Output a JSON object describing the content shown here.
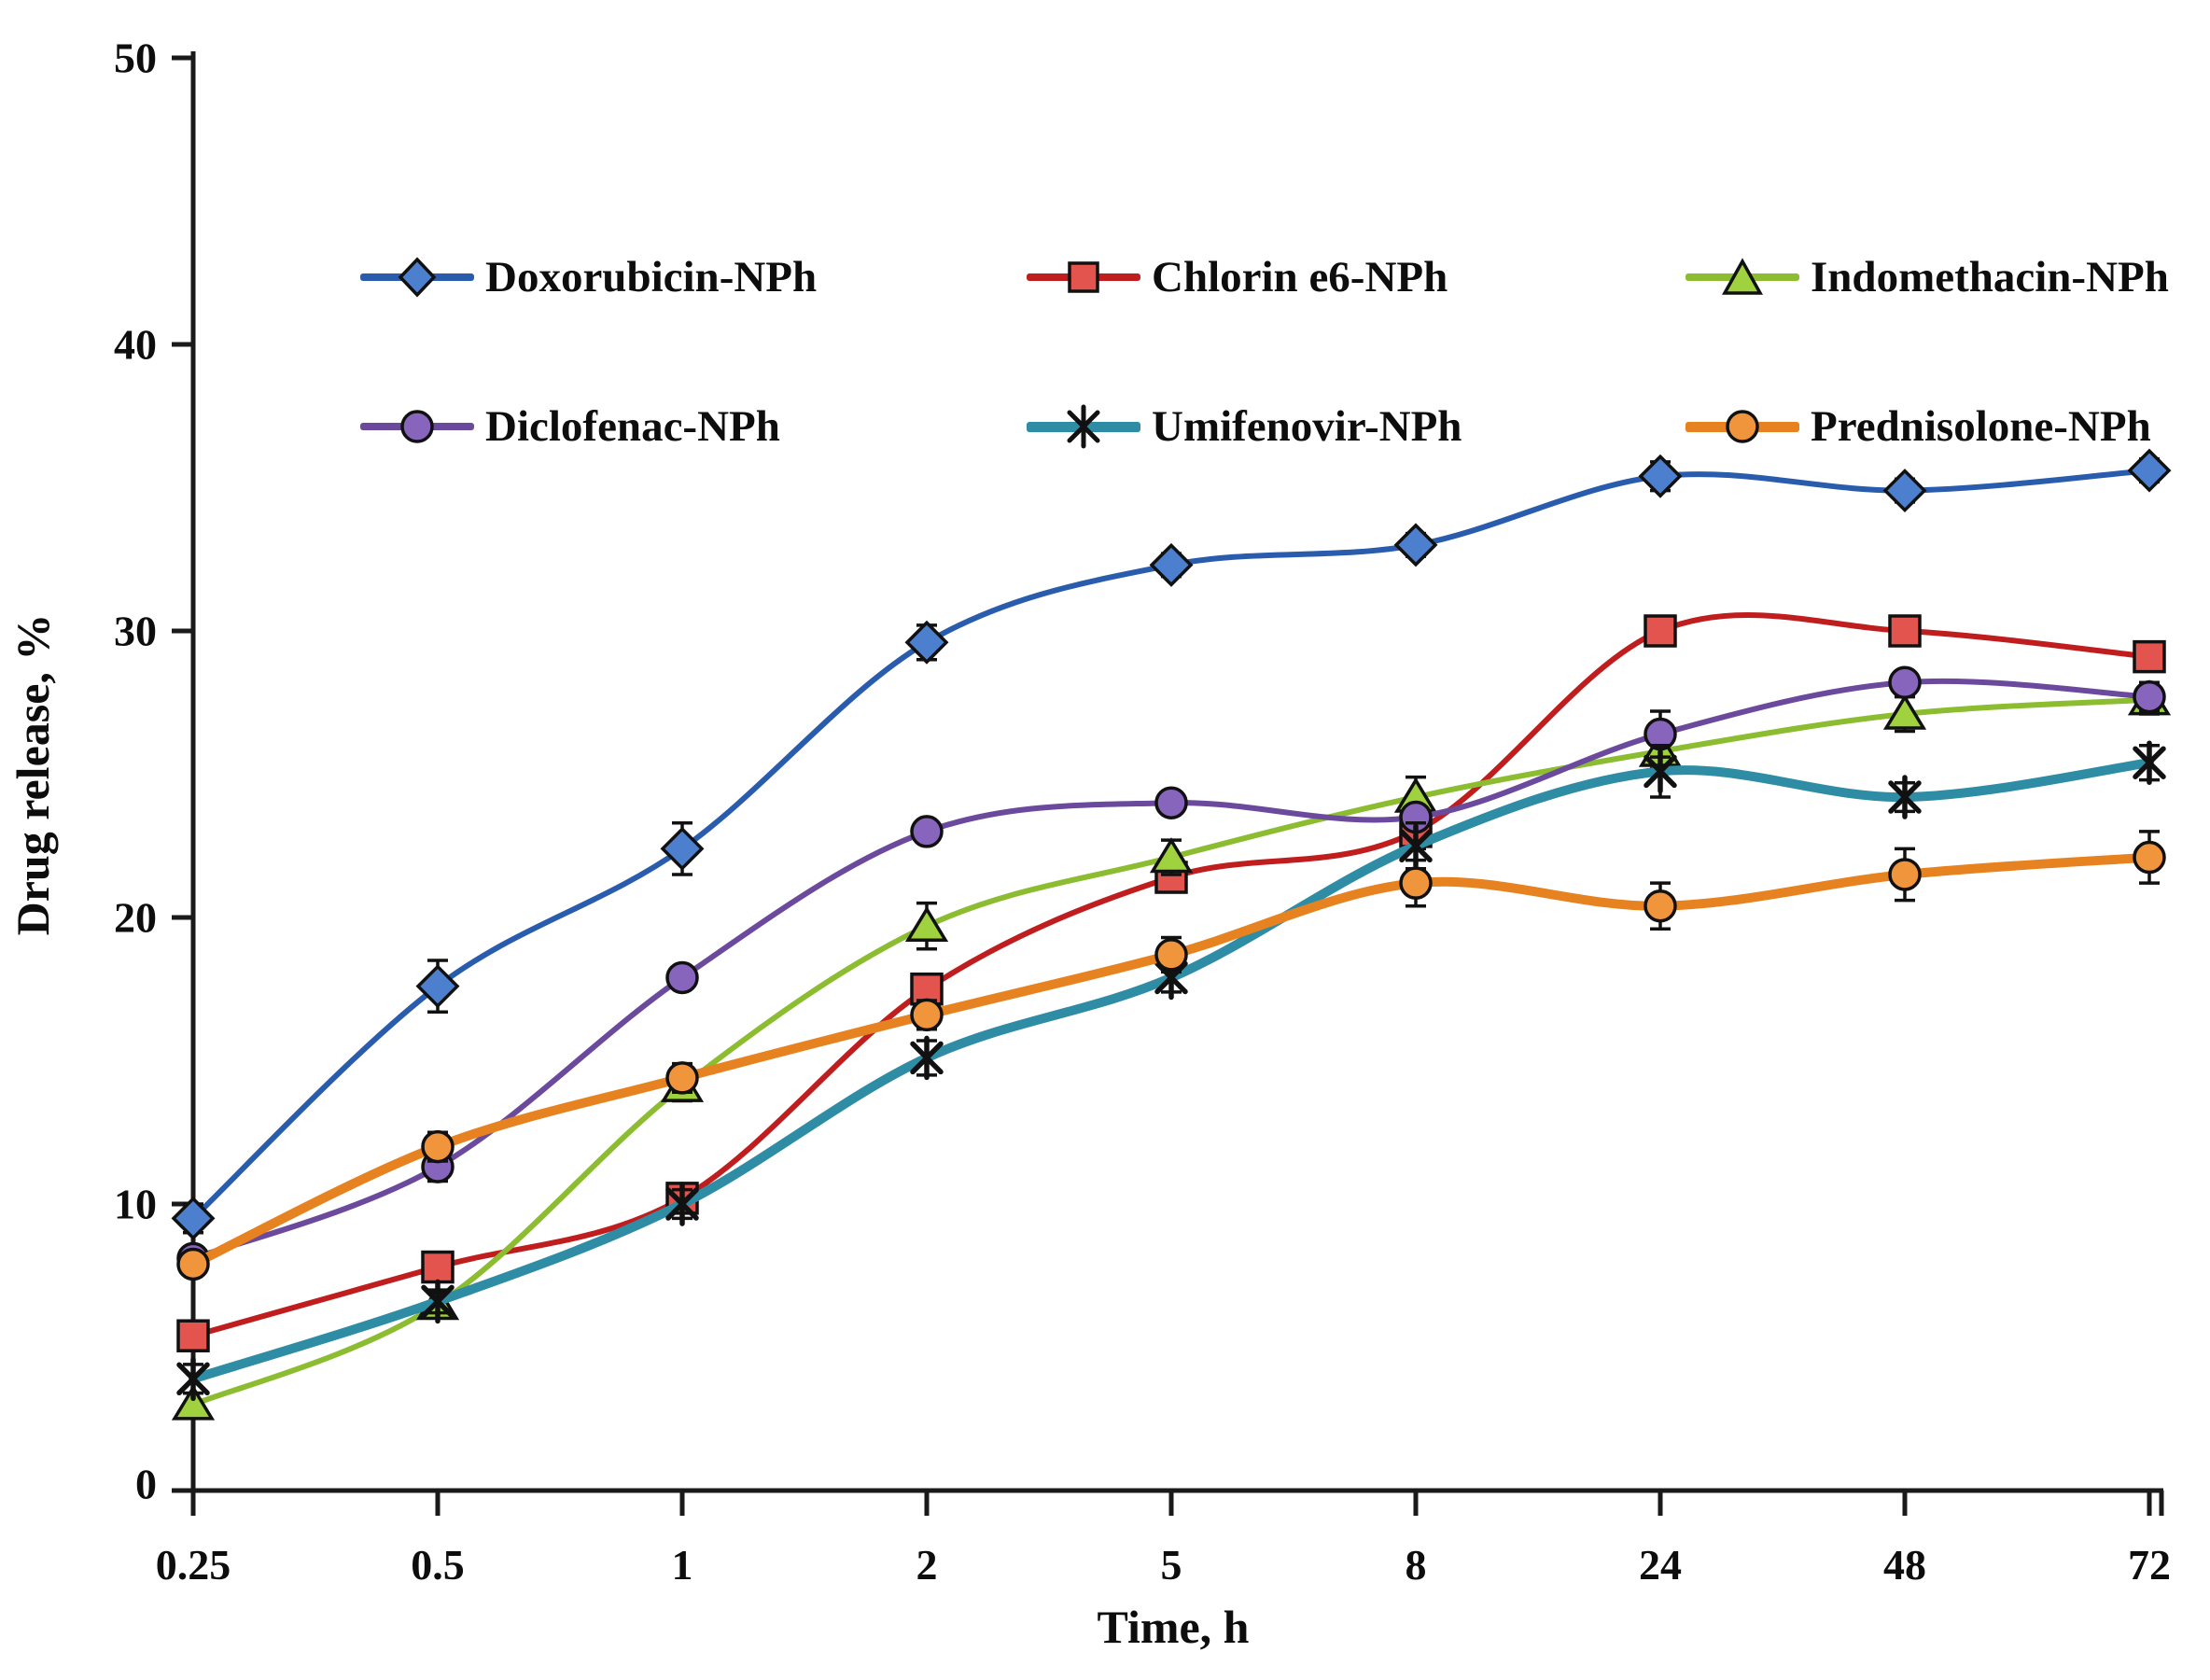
{
  "chart_data": {
    "type": "line",
    "title": "",
    "xlabel": "Time, h",
    "ylabel": "Drug release, %",
    "x_categories": [
      "0.25",
      "0.5",
      "1",
      "2",
      "5",
      "8",
      "24",
      "48",
      "72"
    ],
    "yticks": [
      0,
      10,
      20,
      30,
      40,
      50
    ],
    "ylim": [
      0,
      50
    ],
    "grid": false,
    "legend_position": "inside-top, two rows of three",
    "error_bars": true,
    "series": [
      {
        "name": "Doxorubicin-NPh",
        "marker": "diamond",
        "line_color": "#2A5CAE",
        "marker_fill": "#4C80CF",
        "line_width": 6,
        "values": [
          9.5,
          17.6,
          22.4,
          29.6,
          32.3,
          33.0,
          35.4,
          34.9,
          35.6
        ],
        "errors": [
          0.5,
          0.9,
          0.9,
          0.6,
          0.4,
          0.4,
          0.5,
          0.4,
          0.4
        ]
      },
      {
        "name": "Chlorin e6-NPh",
        "marker": "square",
        "line_color": "#C01E1E",
        "marker_fill": "#E4544E",
        "line_width": 6,
        "values": [
          5.4,
          7.8,
          10.2,
          17.5,
          21.4,
          23.0,
          30.0,
          30.0,
          29.1
        ],
        "errors": [
          0.4,
          0.4,
          0.5,
          0.5,
          0.5,
          0.6,
          0.4,
          0.4,
          0.4
        ]
      },
      {
        "name": "Indomethacin-NPh",
        "marker": "triangle",
        "line_color": "#8CBD31",
        "marker_fill": "#9FD23E",
        "line_width": 6,
        "values": [
          3.0,
          6.5,
          14.1,
          19.7,
          22.1,
          24.2,
          25.8,
          27.1,
          27.6
        ],
        "errors": [
          0.4,
          0.4,
          0.5,
          0.8,
          0.6,
          0.7,
          0.6,
          0.6,
          0.5
        ]
      },
      {
        "name": "Diclofenac-NPh",
        "marker": "circle",
        "line_color": "#6B4A9E",
        "marker_fill": "#8865BC",
        "line_width": 6,
        "values": [
          8.1,
          11.3,
          17.9,
          23.0,
          24.0,
          23.5,
          26.4,
          28.2,
          27.7
        ],
        "errors": [
          0.4,
          0.5,
          0.4,
          0.4,
          0.4,
          0.4,
          0.8,
          0.4,
          0.5
        ]
      },
      {
        "name": "Umifenovir-NPh",
        "marker": "asterisk",
        "line_color": "#2E8CA4",
        "marker_fill": "#111111",
        "line_width": 10,
        "values": [
          3.9,
          6.6,
          10.0,
          15.1,
          17.9,
          22.5,
          25.1,
          24.2,
          25.4
        ],
        "errors": [
          0.5,
          0.4,
          0.5,
          0.6,
          0.5,
          0.8,
          0.9,
          0.5,
          0.6
        ]
      },
      {
        "name": "Prednisolone-NPh",
        "marker": "circle",
        "line_color": "#E78220",
        "marker_fill": "#F1953C",
        "line_width": 10,
        "values": [
          7.9,
          12.0,
          14.4,
          16.6,
          18.7,
          21.2,
          20.4,
          21.5,
          22.1
        ],
        "errors": [
          0.4,
          0.5,
          0.5,
          0.5,
          0.6,
          0.8,
          0.8,
          0.9,
          0.9
        ]
      }
    ]
  }
}
